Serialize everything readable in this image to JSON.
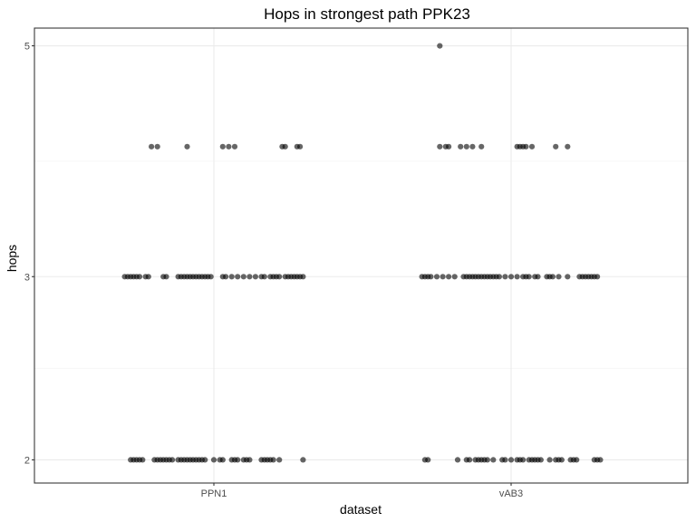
{
  "chart_data": {
    "type": "scatter",
    "title": "Hops in strongest path PPK23",
    "xlabel": "dataset",
    "ylabel": "hops",
    "categories": [
      "PPN1",
      "vAB3"
    ],
    "y_ticks": [
      2,
      3,
      5
    ],
    "y_tick_labels": [
      "2",
      "3",
      "5"
    ],
    "y_scale": "log",
    "ylim": [
      1.9,
      5.2
    ],
    "grid": true,
    "point_color": "#000000",
    "series": [
      {
        "category": "PPN1",
        "points": [
          {
            "x": -0.21,
            "y": 4
          },
          {
            "x": -0.19,
            "y": 4
          },
          {
            "x": -0.09,
            "y": 4
          },
          {
            "x": 0.03,
            "y": 4
          },
          {
            "x": 0.05,
            "y": 4
          },
          {
            "x": 0.07,
            "y": 4
          },
          {
            "x": 0.23,
            "y": 4
          },
          {
            "x": 0.24,
            "y": 4
          },
          {
            "x": 0.28,
            "y": 4
          },
          {
            "x": 0.29,
            "y": 4
          },
          {
            "x": -0.3,
            "y": 3
          },
          {
            "x": -0.29,
            "y": 3
          },
          {
            "x": -0.28,
            "y": 3
          },
          {
            "x": -0.27,
            "y": 3
          },
          {
            "x": -0.26,
            "y": 3
          },
          {
            "x": -0.25,
            "y": 3
          },
          {
            "x": -0.23,
            "y": 3
          },
          {
            "x": -0.22,
            "y": 3
          },
          {
            "x": -0.17,
            "y": 3
          },
          {
            "x": -0.16,
            "y": 3
          },
          {
            "x": -0.12,
            "y": 3
          },
          {
            "x": -0.11,
            "y": 3
          },
          {
            "x": -0.1,
            "y": 3
          },
          {
            "x": -0.09,
            "y": 3
          },
          {
            "x": -0.08,
            "y": 3
          },
          {
            "x": -0.07,
            "y": 3
          },
          {
            "x": -0.06,
            "y": 3
          },
          {
            "x": -0.05,
            "y": 3
          },
          {
            "x": -0.04,
            "y": 3
          },
          {
            "x": -0.03,
            "y": 3
          },
          {
            "x": -0.02,
            "y": 3
          },
          {
            "x": -0.01,
            "y": 3
          },
          {
            "x": 0.03,
            "y": 3
          },
          {
            "x": 0.04,
            "y": 3
          },
          {
            "x": 0.06,
            "y": 3
          },
          {
            "x": 0.08,
            "y": 3
          },
          {
            "x": 0.1,
            "y": 3
          },
          {
            "x": 0.12,
            "y": 3
          },
          {
            "x": 0.14,
            "y": 3
          },
          {
            "x": 0.16,
            "y": 3
          },
          {
            "x": 0.17,
            "y": 3
          },
          {
            "x": 0.19,
            "y": 3
          },
          {
            "x": 0.2,
            "y": 3
          },
          {
            "x": 0.21,
            "y": 3
          },
          {
            "x": 0.22,
            "y": 3
          },
          {
            "x": 0.24,
            "y": 3
          },
          {
            "x": 0.25,
            "y": 3
          },
          {
            "x": 0.26,
            "y": 3
          },
          {
            "x": 0.27,
            "y": 3
          },
          {
            "x": 0.28,
            "y": 3
          },
          {
            "x": 0.29,
            "y": 3
          },
          {
            "x": 0.3,
            "y": 3
          },
          {
            "x": -0.28,
            "y": 2
          },
          {
            "x": -0.27,
            "y": 2
          },
          {
            "x": -0.26,
            "y": 2
          },
          {
            "x": -0.25,
            "y": 2
          },
          {
            "x": -0.24,
            "y": 2
          },
          {
            "x": -0.2,
            "y": 2
          },
          {
            "x": -0.19,
            "y": 2
          },
          {
            "x": -0.18,
            "y": 2
          },
          {
            "x": -0.17,
            "y": 2
          },
          {
            "x": -0.16,
            "y": 2
          },
          {
            "x": -0.15,
            "y": 2
          },
          {
            "x": -0.14,
            "y": 2
          },
          {
            "x": -0.12,
            "y": 2
          },
          {
            "x": -0.11,
            "y": 2
          },
          {
            "x": -0.1,
            "y": 2
          },
          {
            "x": -0.09,
            "y": 2
          },
          {
            "x": -0.08,
            "y": 2
          },
          {
            "x": -0.07,
            "y": 2
          },
          {
            "x": -0.06,
            "y": 2
          },
          {
            "x": -0.05,
            "y": 2
          },
          {
            "x": -0.04,
            "y": 2
          },
          {
            "x": -0.03,
            "y": 2
          },
          {
            "x": 0.0,
            "y": 2
          },
          {
            "x": 0.02,
            "y": 2
          },
          {
            "x": 0.03,
            "y": 2
          },
          {
            "x": 0.06,
            "y": 2
          },
          {
            "x": 0.07,
            "y": 2
          },
          {
            "x": 0.08,
            "y": 2
          },
          {
            "x": 0.1,
            "y": 2
          },
          {
            "x": 0.11,
            "y": 2
          },
          {
            "x": 0.12,
            "y": 2
          },
          {
            "x": 0.16,
            "y": 2
          },
          {
            "x": 0.17,
            "y": 2
          },
          {
            "x": 0.18,
            "y": 2
          },
          {
            "x": 0.19,
            "y": 2
          },
          {
            "x": 0.2,
            "y": 2
          },
          {
            "x": 0.22,
            "y": 2
          },
          {
            "x": 0.3,
            "y": 2
          }
        ]
      },
      {
        "category": "vAB3",
        "points": [
          {
            "x": -0.24,
            "y": 5
          },
          {
            "x": -0.24,
            "y": 4
          },
          {
            "x": -0.22,
            "y": 4
          },
          {
            "x": -0.21,
            "y": 4
          },
          {
            "x": -0.17,
            "y": 4
          },
          {
            "x": -0.15,
            "y": 4
          },
          {
            "x": -0.13,
            "y": 4
          },
          {
            "x": -0.1,
            "y": 4
          },
          {
            "x": 0.02,
            "y": 4
          },
          {
            "x": 0.03,
            "y": 4
          },
          {
            "x": 0.04,
            "y": 4
          },
          {
            "x": 0.05,
            "y": 4
          },
          {
            "x": 0.07,
            "y": 4
          },
          {
            "x": 0.15,
            "y": 4
          },
          {
            "x": 0.19,
            "y": 4
          },
          {
            "x": -0.3,
            "y": 3
          },
          {
            "x": -0.29,
            "y": 3
          },
          {
            "x": -0.28,
            "y": 3
          },
          {
            "x": -0.27,
            "y": 3
          },
          {
            "x": -0.25,
            "y": 3
          },
          {
            "x": -0.23,
            "y": 3
          },
          {
            "x": -0.21,
            "y": 3
          },
          {
            "x": -0.19,
            "y": 3
          },
          {
            "x": -0.16,
            "y": 3
          },
          {
            "x": -0.15,
            "y": 3
          },
          {
            "x": -0.14,
            "y": 3
          },
          {
            "x": -0.13,
            "y": 3
          },
          {
            "x": -0.12,
            "y": 3
          },
          {
            "x": -0.11,
            "y": 3
          },
          {
            "x": -0.1,
            "y": 3
          },
          {
            "x": -0.09,
            "y": 3
          },
          {
            "x": -0.08,
            "y": 3
          },
          {
            "x": -0.07,
            "y": 3
          },
          {
            "x": -0.06,
            "y": 3
          },
          {
            "x": -0.05,
            "y": 3
          },
          {
            "x": -0.04,
            "y": 3
          },
          {
            "x": -0.02,
            "y": 3
          },
          {
            "x": 0.0,
            "y": 3
          },
          {
            "x": 0.02,
            "y": 3
          },
          {
            "x": 0.04,
            "y": 3
          },
          {
            "x": 0.05,
            "y": 3
          },
          {
            "x": 0.06,
            "y": 3
          },
          {
            "x": 0.08,
            "y": 3
          },
          {
            "x": 0.09,
            "y": 3
          },
          {
            "x": 0.12,
            "y": 3
          },
          {
            "x": 0.13,
            "y": 3
          },
          {
            "x": 0.14,
            "y": 3
          },
          {
            "x": 0.16,
            "y": 3
          },
          {
            "x": 0.19,
            "y": 3
          },
          {
            "x": 0.23,
            "y": 3
          },
          {
            "x": 0.24,
            "y": 3
          },
          {
            "x": 0.25,
            "y": 3
          },
          {
            "x": 0.26,
            "y": 3
          },
          {
            "x": 0.27,
            "y": 3
          },
          {
            "x": 0.28,
            "y": 3
          },
          {
            "x": 0.29,
            "y": 3
          },
          {
            "x": -0.29,
            "y": 2
          },
          {
            "x": -0.28,
            "y": 2
          },
          {
            "x": -0.18,
            "y": 2
          },
          {
            "x": -0.15,
            "y": 2
          },
          {
            "x": -0.14,
            "y": 2
          },
          {
            "x": -0.12,
            "y": 2
          },
          {
            "x": -0.11,
            "y": 2
          },
          {
            "x": -0.1,
            "y": 2
          },
          {
            "x": -0.09,
            "y": 2
          },
          {
            "x": -0.08,
            "y": 2
          },
          {
            "x": -0.06,
            "y": 2
          },
          {
            "x": -0.03,
            "y": 2
          },
          {
            "x": -0.02,
            "y": 2
          },
          {
            "x": 0.0,
            "y": 2
          },
          {
            "x": 0.02,
            "y": 2
          },
          {
            "x": 0.03,
            "y": 2
          },
          {
            "x": 0.04,
            "y": 2
          },
          {
            "x": 0.06,
            "y": 2
          },
          {
            "x": 0.07,
            "y": 2
          },
          {
            "x": 0.08,
            "y": 2
          },
          {
            "x": 0.09,
            "y": 2
          },
          {
            "x": 0.1,
            "y": 2
          },
          {
            "x": 0.13,
            "y": 2
          },
          {
            "x": 0.15,
            "y": 2
          },
          {
            "x": 0.16,
            "y": 2
          },
          {
            "x": 0.17,
            "y": 2
          },
          {
            "x": 0.2,
            "y": 2
          },
          {
            "x": 0.21,
            "y": 2
          },
          {
            "x": 0.22,
            "y": 2
          },
          {
            "x": 0.28,
            "y": 2
          },
          {
            "x": 0.29,
            "y": 2
          },
          {
            "x": 0.3,
            "y": 2
          }
        ]
      }
    ]
  }
}
